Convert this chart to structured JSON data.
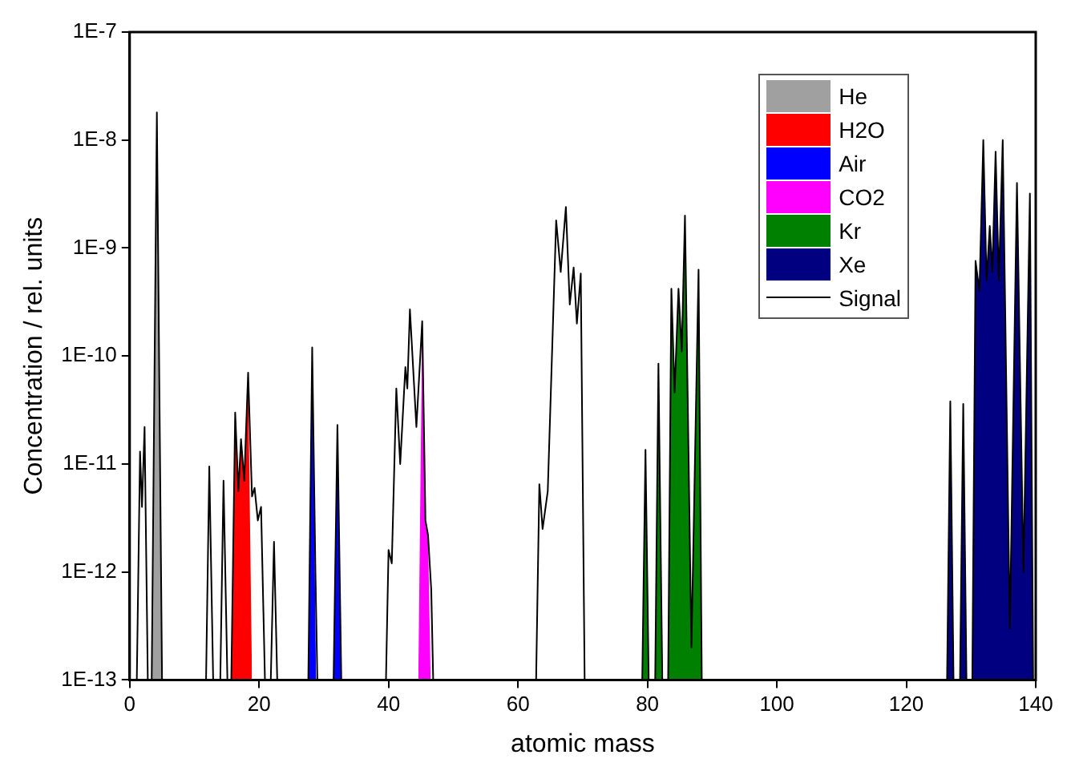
{
  "chart_data": {
    "type": "area",
    "xlabel": "atomic mass",
    "ylabel": "Concentration / rel. units",
    "log": "y",
    "xlim": [
      0,
      140
    ],
    "xticks": [
      0,
      20,
      40,
      60,
      80,
      100,
      120,
      140
    ],
    "ylim": [
      1e-13,
      1e-07
    ],
    "yticks": [
      {
        "value": 1e-13,
        "label": "1E-13"
      },
      {
        "value": 1e-12,
        "label": "1E-12"
      },
      {
        "value": 1e-11,
        "label": "1E-11"
      },
      {
        "value": 1e-10,
        "label": "1E-10"
      },
      {
        "value": 1e-09,
        "label": "1E-9"
      },
      {
        "value": 1e-08,
        "label": "1E-8"
      },
      {
        "value": 1e-07,
        "label": "1E-7"
      }
    ],
    "grid": false,
    "legend": "top right",
    "marker": "none",
    "series": [
      {
        "name": "He",
        "color": "#a0a0a0",
        "x": [
          3.4,
          4.2,
          5.0
        ],
        "values": [
          1e-13,
          1.8e-08,
          1e-13
        ]
      },
      {
        "name": "H2O",
        "color": "#ff0000",
        "x": [
          15.7,
          16.3,
          16.8,
          17.2,
          17.7,
          18.3,
          18.9
        ],
        "values": [
          1e-13,
          3e-11,
          5.6e-12,
          1.7e-11,
          7e-12,
          7e-11,
          1e-13
        ]
      },
      {
        "name": "Air",
        "color": "#0000ff",
        "x": [
          27.6,
          28.2,
          28.8,
          31.5,
          32.1,
          32.7
        ],
        "values": [
          1e-13,
          1.2e-10,
          1e-13,
          1e-13,
          2.3e-11,
          1e-13
        ]
      },
      {
        "name": "CO2",
        "color": "#ff00ff",
        "x": [
          44.6,
          45.2,
          45.7,
          46.1,
          46.5
        ],
        "values": [
          1e-13,
          2.1e-10,
          3e-12,
          2.2e-12,
          1e-13
        ]
      },
      {
        "name": "Kr",
        "color": "#008000",
        "x": [
          79.2,
          79.7,
          80.2,
          81.2,
          81.7,
          82.3,
          83.2,
          83.7,
          84.2,
          84.8,
          85.3,
          85.8,
          86.8,
          87.9,
          88.4
        ],
        "values": [
          1e-13,
          1.35e-11,
          1e-13,
          1e-13,
          8.5e-11,
          1e-13,
          1e-13,
          4.2e-10,
          4.6e-11,
          4.2e-10,
          1.1e-10,
          2e-09,
          2e-13,
          6.3e-10,
          1e-13
        ]
      },
      {
        "name": "Xe",
        "color": "#000080",
        "x": [
          126.3,
          126.8,
          127.3,
          128.3,
          128.8,
          129.3,
          130.2,
          130.7,
          131.3,
          131.9,
          132.4,
          132.9,
          133.3,
          133.8,
          134.3,
          134.9,
          136.0,
          137.1,
          138.1,
          139.1,
          139.6
        ],
        "values": [
          1e-13,
          3.8e-11,
          1e-13,
          1e-13,
          3.6e-11,
          1e-13,
          1e-13,
          7.6e-10,
          4e-10,
          1e-08,
          5e-10,
          1.6e-09,
          6e-10,
          7.8e-09,
          5e-10,
          1e-08,
          3e-13,
          4e-09,
          1e-12,
          3.2e-09,
          1e-13
        ]
      },
      {
        "name": "Signal",
        "type": "line",
        "color": "#000000",
        "x": [
          1.1,
          1.6,
          1.9,
          2.3,
          2.8,
          3.4,
          4.2,
          5.0,
          11.8,
          12.3,
          12.9,
          14.0,
          14.5,
          15.1,
          15.7,
          16.3,
          16.8,
          17.2,
          17.7,
          18.3,
          18.9,
          19.3,
          19.8,
          20.3,
          20.9,
          21.8,
          22.3,
          22.8,
          27.6,
          28.2,
          28.7,
          29.0,
          31.5,
          32.1,
          32.7,
          39.6,
          40.0,
          40.5,
          41.2,
          41.8,
          42.6,
          42.9,
          43.3,
          44.3,
          45.2,
          45.7,
          46.1,
          46.6,
          46.9,
          62.8,
          63.3,
          63.8,
          64.6,
          65.9,
          66.6,
          67.4,
          68.0,
          68.6,
          69.1,
          69.7,
          70.3,
          79.2,
          79.7,
          80.2,
          81.2,
          81.7,
          82.3,
          83.2,
          83.7,
          84.2,
          84.8,
          85.3,
          85.8,
          86.8,
          87.9,
          88.4,
          126.3,
          126.8,
          127.3,
          128.3,
          128.8,
          129.3,
          130.2,
          130.7,
          131.3,
          131.9,
          132.4,
          132.9,
          133.3,
          133.8,
          134.3,
          134.9,
          136.0,
          137.1,
          138.1,
          139.1,
          139.6
        ],
        "values": [
          1e-13,
          1.3e-11,
          4e-12,
          2.2e-11,
          1e-13,
          1e-13,
          1.8e-08,
          1e-13,
          1e-13,
          9.5e-12,
          1e-13,
          1e-13,
          7e-12,
          1e-13,
          1e-13,
          3e-11,
          5.6e-12,
          1.7e-11,
          7e-12,
          7e-11,
          5e-12,
          6e-12,
          3e-12,
          4e-12,
          1e-13,
          1e-13,
          1.9e-12,
          1e-13,
          1e-13,
          1.2e-10,
          1e-12,
          1e-13,
          1e-13,
          2.3e-11,
          1e-13,
          1e-13,
          1.6e-12,
          1.2e-12,
          5e-11,
          1e-11,
          7.9e-11,
          5e-11,
          2.7e-10,
          2.2e-11,
          2.1e-10,
          3e-12,
          2.2e-12,
          6.8e-13,
          1e-13,
          1e-13,
          6.5e-12,
          2.5e-12,
          5.6e-12,
          1.8e-09,
          6e-10,
          2.4e-09,
          3e-10,
          6.6e-10,
          2e-10,
          5.8e-10,
          1e-13,
          1e-13,
          1.35e-11,
          1e-13,
          1e-13,
          8.5e-11,
          1e-13,
          1e-13,
          4.2e-10,
          4.6e-11,
          4.2e-10,
          1.1e-10,
          2e-09,
          2e-13,
          6.3e-10,
          1e-13,
          1e-13,
          3.8e-11,
          1e-13,
          1e-13,
          3.6e-11,
          1e-13,
          1e-13,
          7.6e-10,
          4e-10,
          1e-08,
          5e-10,
          1.6e-09,
          6e-10,
          7.8e-09,
          5e-10,
          1e-08,
          3e-13,
          4e-09,
          1e-12,
          3.2e-09,
          1e-13
        ]
      }
    ]
  }
}
